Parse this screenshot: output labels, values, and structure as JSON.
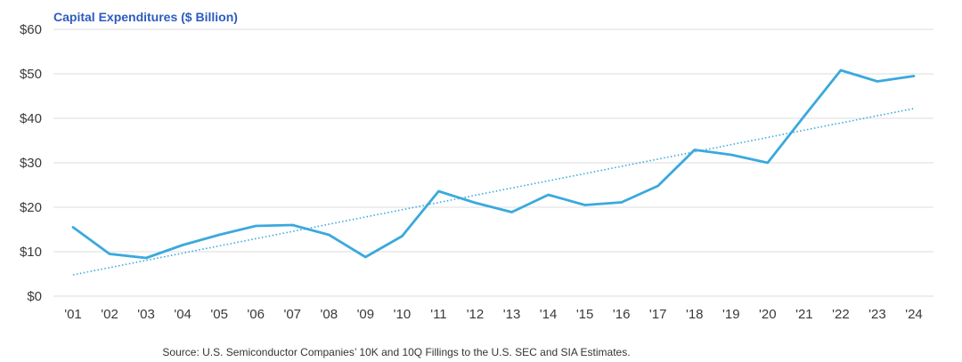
{
  "chart_data": {
    "type": "line",
    "title": "Capital Expenditures ($ Billion)",
    "source": "Source: U.S. Semiconductor Companies’ 10K and 10Q Fillings to the U.S. SEC and SIA Estimates.",
    "categories": [
      "'01",
      "'02",
      "'03",
      "'04",
      "'05",
      "'06",
      "'07",
      "'08",
      "'09",
      "'10",
      "'11",
      "'12",
      "'13",
      "'14",
      "'15",
      "'16",
      "'17",
      "'18",
      "'19",
      "'20",
      "'21",
      "'22",
      "'23",
      "'24"
    ],
    "values": [
      15.5,
      9.5,
      8.6,
      11.5,
      13.8,
      15.8,
      16.0,
      13.8,
      8.8,
      13.5,
      23.6,
      21.0,
      18.9,
      22.8,
      20.5,
      21.1,
      24.8,
      32.9,
      31.8,
      30.0,
      40.5,
      50.8,
      48.3,
      49.5
    ],
    "trendline": {
      "style": "dotted",
      "start": 4.8,
      "end": 42.2
    },
    "y_ticks": [
      "$0",
      "$10",
      "$20",
      "$30",
      "$40",
      "$50",
      "$60"
    ],
    "ylim": [
      0,
      60
    ],
    "grid": true,
    "legend": "none",
    "colors": {
      "line": "#3aa9dd",
      "trend": "#3aa9dd",
      "title": "#2e5bbf"
    }
  }
}
